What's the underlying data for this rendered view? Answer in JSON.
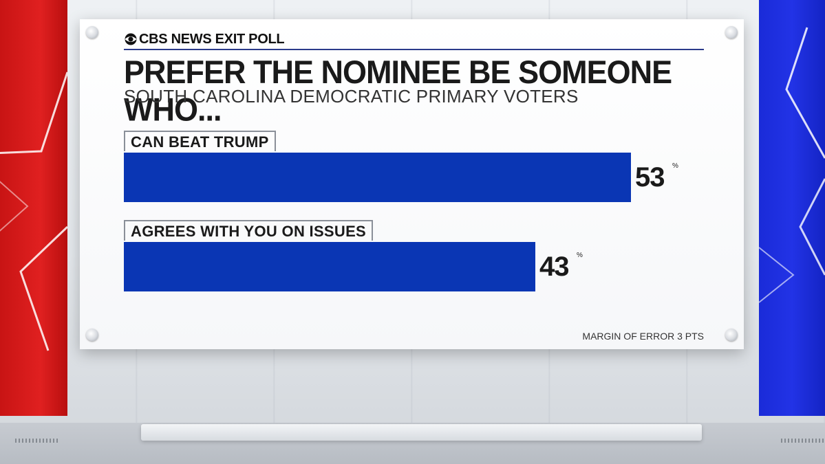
{
  "brand": {
    "logo_icon": "cbs-eye-icon",
    "label": "CBS NEWS EXIT POLL"
  },
  "chart_data": {
    "type": "bar",
    "orientation": "horizontal",
    "title": "PREFER THE NOMINEE BE SOMEONE WHO...",
    "subtitle": "SOUTH CAROLINA DEMOCRATIC PRIMARY VOTERS",
    "categories": [
      "CAN BEAT TRUMP",
      "AGREES WITH YOU ON ISSUES"
    ],
    "values": [
      53,
      43
    ],
    "value_labels": [
      "53",
      "43"
    ],
    "unit": "%",
    "xlim": [
      0,
      100
    ],
    "bar_color": "#0a36b4",
    "grid": false,
    "legend": "none"
  },
  "footnote": "MARGIN OF ERROR 3 PTS",
  "colors": {
    "left_panel": "#d81a1a",
    "right_panel": "#1e2fe0",
    "bar": "#0a36b4"
  }
}
